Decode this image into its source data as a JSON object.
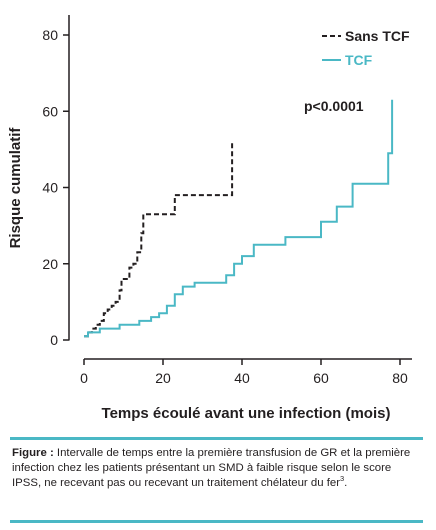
{
  "chart_data": {
    "type": "line",
    "xlabel": "Temps écoulé avant une infection (mois)",
    "ylabel": "Risque cumulatif",
    "xlim": [
      0,
      80
    ],
    "ylim": [
      0,
      80
    ],
    "x_ticks": [
      0,
      20,
      40,
      60,
      80
    ],
    "y_ticks": [
      0,
      20,
      40,
      60,
      80
    ],
    "grid": false,
    "legend_position": "top-right",
    "annotation": "p<0.0001",
    "series": [
      {
        "name": "Sans TCF",
        "color": "#231f20",
        "line_style": "dashed",
        "step_points": [
          [
            0,
            1
          ],
          [
            1,
            1
          ],
          [
            1,
            2
          ],
          [
            2,
            2
          ],
          [
            2,
            3
          ],
          [
            3,
            3
          ],
          [
            3,
            4
          ],
          [
            4,
            4
          ],
          [
            4,
            5
          ],
          [
            5,
            5
          ],
          [
            5,
            7
          ],
          [
            6,
            7
          ],
          [
            6,
            8
          ],
          [
            7,
            8
          ],
          [
            7,
            9
          ],
          [
            8,
            9
          ],
          [
            8,
            10
          ],
          [
            9,
            10
          ],
          [
            9,
            13
          ],
          [
            9.5,
            13
          ],
          [
            9.5,
            16
          ],
          [
            11.5,
            16
          ],
          [
            11.5,
            19
          ],
          [
            12.5,
            19
          ],
          [
            12.5,
            20
          ],
          [
            13.5,
            20
          ],
          [
            13.5,
            23
          ],
          [
            14.5,
            23
          ],
          [
            14.5,
            28
          ],
          [
            15,
            28
          ],
          [
            15,
            33
          ],
          [
            23,
            33
          ],
          [
            23,
            38
          ],
          [
            37.5,
            38
          ],
          [
            37.5,
            52
          ]
        ]
      },
      {
        "name": "TCF",
        "color": "#4ab8c5",
        "line_style": "solid",
        "step_points": [
          [
            0,
            1
          ],
          [
            1,
            1
          ],
          [
            1,
            2
          ],
          [
            4,
            2
          ],
          [
            4,
            3
          ],
          [
            9,
            3
          ],
          [
            9,
            4
          ],
          [
            14,
            4
          ],
          [
            14,
            5
          ],
          [
            17,
            5
          ],
          [
            17,
            6
          ],
          [
            19,
            6
          ],
          [
            19,
            7
          ],
          [
            21,
            7
          ],
          [
            21,
            9
          ],
          [
            23,
            9
          ],
          [
            23,
            12
          ],
          [
            25,
            12
          ],
          [
            25,
            14
          ],
          [
            28,
            14
          ],
          [
            28,
            15
          ],
          [
            36,
            15
          ],
          [
            36,
            17
          ],
          [
            38,
            17
          ],
          [
            38,
            20
          ],
          [
            40,
            20
          ],
          [
            40,
            22
          ],
          [
            43,
            22
          ],
          [
            43,
            25
          ],
          [
            51,
            25
          ],
          [
            51,
            27
          ],
          [
            60,
            27
          ],
          [
            60,
            31
          ],
          [
            64,
            31
          ],
          [
            64,
            35
          ],
          [
            68,
            35
          ],
          [
            68,
            41
          ],
          [
            77,
            41
          ],
          [
            77,
            49
          ],
          [
            78,
            49
          ],
          [
            78,
            63
          ]
        ]
      }
    ]
  },
  "caption": {
    "label": "Figure :",
    "text": " Intervalle de temps entre la première transfusion de GR et la première infection chez les patients présentant un SMD à faible risque selon le score IPSS, ne recevant pas ou recevant un traitement chélateur du fer",
    "superscript": "3",
    "end": ".",
    "accent_color": "#4ab8c5"
  }
}
